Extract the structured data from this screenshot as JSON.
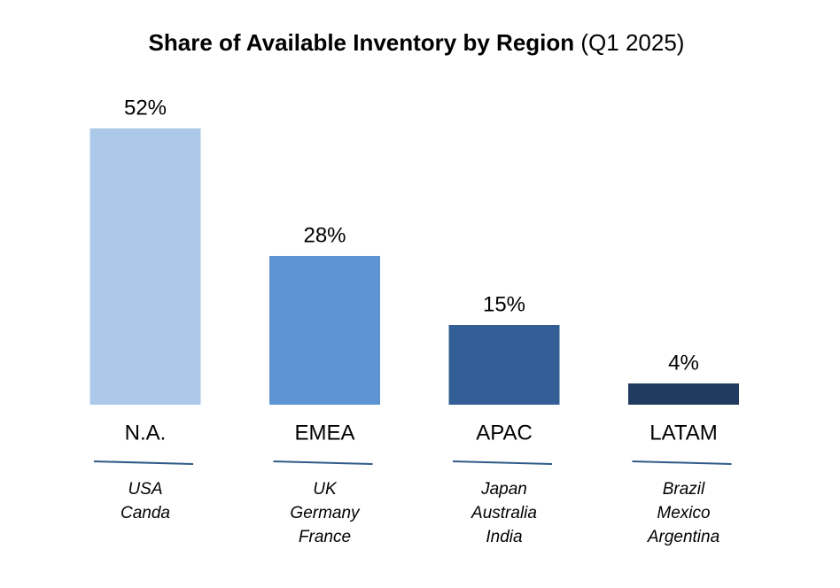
{
  "chart_data": {
    "type": "bar",
    "title": "Share of Available Inventory by Region",
    "subtitle": "(Q1 2025)",
    "categories": [
      "N.A.",
      "EMEA",
      "APAC",
      "LATAM"
    ],
    "values": [
      52,
      28,
      15,
      4
    ],
    "value_labels": [
      "52%",
      "28%",
      "15%",
      "4%"
    ],
    "colors": [
      "#adc9ea",
      "#5f94d3",
      "#335f96",
      "#213b60"
    ],
    "category_details": [
      [
        "USA",
        "Canda"
      ],
      [
        "UK",
        "Germany",
        "France"
      ],
      [
        "Japan",
        "Australia",
        "India"
      ],
      [
        "Brazil",
        "Mexico",
        "Argentina"
      ]
    ]
  }
}
